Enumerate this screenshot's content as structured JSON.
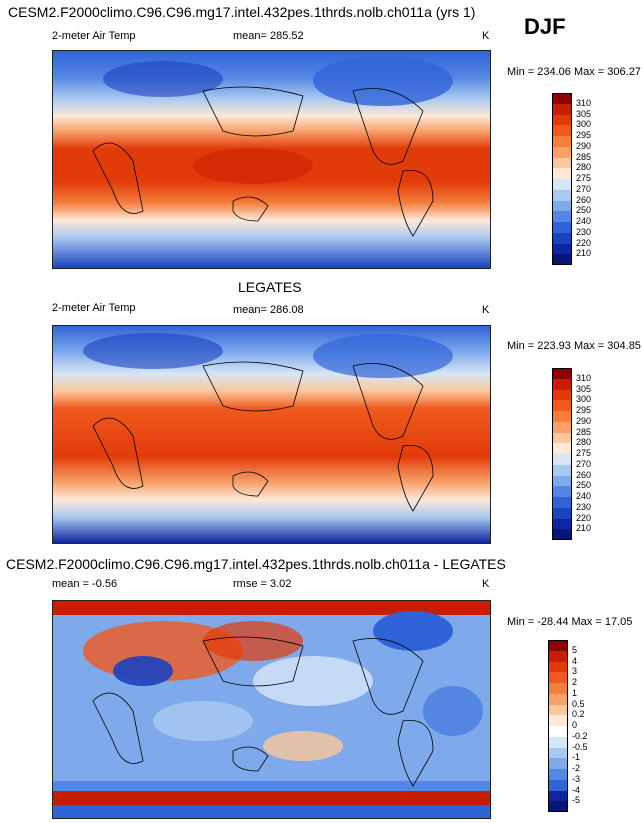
{
  "header": {
    "top_title": "CESM2.F2000climo.C96.C96.mg17.intel.432pes.1thrds.nolb.ch011a (yrs 1)",
    "season": "DJF"
  },
  "panels": [
    {
      "variable": "2-meter Air Temp",
      "stat_text": "mean= 285.52",
      "units": "K",
      "minmax": "Min = 234.06 Max = 306.27",
      "colorbar_labels": [
        "310",
        "305",
        "300",
        "295",
        "290",
        "285",
        "280",
        "275",
        "270",
        "260",
        "250",
        "240",
        "230",
        "220",
        "210"
      ],
      "colorbar_colors": [
        "#8b0000",
        "#c81e00",
        "#e23b0a",
        "#f05a1e",
        "#f57d3c",
        "#f7a169",
        "#fbc79b",
        "#fde9d8",
        "#d7e6f7",
        "#aac9f0",
        "#7eaaeb",
        "#5487e3",
        "#2f64d8",
        "#1a43c0",
        "#0d25a0",
        "#071575"
      ]
    },
    {
      "panel_title": "LEGATES",
      "variable": "2-meter Air Temp",
      "stat_text": "mean= 286.08",
      "units": "K",
      "minmax": "Min = 223.93 Max = 304.85",
      "colorbar_labels": [
        "310",
        "305",
        "300",
        "295",
        "290",
        "285",
        "280",
        "275",
        "270",
        "260",
        "250",
        "240",
        "230",
        "220",
        "210"
      ],
      "colorbar_colors": [
        "#8b0000",
        "#c81e00",
        "#e23b0a",
        "#f05a1e",
        "#f57d3c",
        "#f7a169",
        "#fbc79b",
        "#fde9d8",
        "#d7e6f7",
        "#aac9f0",
        "#7eaaeb",
        "#5487e3",
        "#2f64d8",
        "#1a43c0",
        "#0d25a0",
        "#071575"
      ]
    },
    {
      "panel_title": "CESM2.F2000climo.C96.C96.mg17.intel.432pes.1thrds.nolb.ch011a - LEGATES",
      "mean_text": "mean =  -0.56",
      "rmse_text": "rmse =   3.02",
      "units": "K",
      "minmax": "Min = -28.44 Max =  17.05",
      "colorbar_labels": [
        "5",
        "4",
        "3",
        "2",
        "1",
        "0.5",
        "0.2",
        "0",
        "-0.2",
        "-0.5",
        "-1",
        "-2",
        "-3",
        "-4",
        "-5"
      ],
      "colorbar_colors": [
        "#8b0000",
        "#c81e00",
        "#e23b0a",
        "#f05a1e",
        "#f57d3c",
        "#f7a169",
        "#fbc79b",
        "#fde9d8",
        "#ffffff",
        "#d7e6f7",
        "#aac9f0",
        "#7eaaeb",
        "#5487e3",
        "#2f64d8",
        "#0d25a0",
        "#071575"
      ]
    }
  ]
}
